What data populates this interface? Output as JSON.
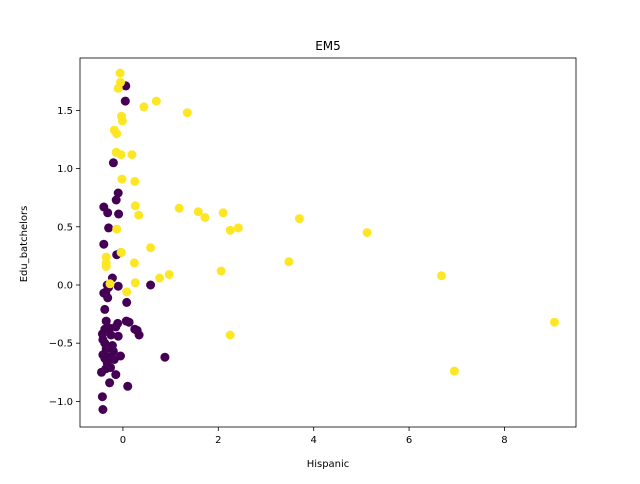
{
  "chart_data": {
    "type": "scatter",
    "title": "EM5",
    "xlabel": "Hispanic",
    "ylabel": "Edu_batchelors",
    "xlim": [
      -0.9,
      9.5
    ],
    "ylim": [
      -1.22,
      1.95
    ],
    "xticks": [
      0,
      2,
      4,
      6,
      8
    ],
    "yticks": [
      -1.0,
      -0.5,
      0.0,
      0.5,
      1.0,
      1.5
    ],
    "xtick_labels": [
      "0",
      "2",
      "4",
      "6",
      "8"
    ],
    "ytick_labels": [
      "−1.0",
      "−0.5",
      "0.0",
      "0.5",
      "1.0",
      "1.5"
    ],
    "grid": false,
    "legend": "none",
    "colors": {
      "cluster_0": "#440154",
      "cluster_1": "#21918c",
      "cluster_2": "#5ec962",
      "cluster_3": "#fde725"
    },
    "series": [
      {
        "color_key": "cluster_0",
        "points": [
          [
            0.06,
            1.71
          ],
          [
            0.05,
            1.58
          ],
          [
            -0.2,
            1.05
          ],
          [
            -0.1,
            0.79
          ],
          [
            -0.14,
            0.73
          ],
          [
            -0.4,
            0.67
          ],
          [
            -0.32,
            0.62
          ],
          [
            -0.09,
            0.61
          ],
          [
            -0.3,
            0.49
          ],
          [
            -0.4,
            0.35
          ],
          [
            -0.13,
            0.26
          ],
          [
            -0.22,
            0.06
          ],
          [
            -0.33,
            0.0
          ],
          [
            -0.1,
            -0.01
          ],
          [
            -0.3,
            -0.02
          ],
          [
            -0.36,
            -0.06
          ],
          [
            -0.4,
            -0.07
          ],
          [
            -0.32,
            -0.11
          ],
          [
            0.58,
            0.0
          ],
          [
            0.08,
            -0.15
          ],
          [
            -0.38,
            -0.21
          ],
          [
            -0.35,
            -0.31
          ],
          [
            0.07,
            -0.31
          ],
          [
            0.13,
            -0.32
          ],
          [
            -0.11,
            -0.33
          ],
          [
            -0.15,
            -0.36
          ],
          [
            -0.28,
            -0.37
          ],
          [
            -0.38,
            -0.38
          ],
          [
            0.25,
            -0.38
          ],
          [
            0.3,
            -0.39
          ],
          [
            -0.43,
            -0.42
          ],
          [
            -0.25,
            -0.43
          ],
          [
            -0.1,
            -0.44
          ],
          [
            0.34,
            -0.43
          ],
          [
            -0.42,
            -0.47
          ],
          [
            -0.38,
            -0.5
          ],
          [
            -0.22,
            -0.52
          ],
          [
            -0.35,
            -0.55
          ],
          [
            -0.2,
            -0.57
          ],
          [
            -0.42,
            -0.6
          ],
          [
            -0.3,
            -0.62
          ],
          [
            -0.05,
            -0.61
          ],
          [
            -0.38,
            -0.63
          ],
          [
            -0.18,
            -0.64
          ],
          [
            -0.33,
            -0.67
          ],
          [
            -0.26,
            -0.71
          ],
          [
            -0.45,
            -0.75
          ],
          [
            -0.36,
            -0.72
          ],
          [
            -0.15,
            -0.77
          ],
          [
            0.88,
            -0.62
          ],
          [
            -0.28,
            -0.84
          ],
          [
            0.1,
            -0.87
          ],
          [
            -0.43,
            -0.96
          ],
          [
            -0.42,
            -1.07
          ]
        ]
      },
      {
        "color_key": "cluster_2",
        "points": [
          [
            -0.04,
            0.28
          ]
        ]
      },
      {
        "color_key": "cluster_3",
        "points": [
          [
            -0.06,
            1.82
          ],
          [
            -0.05,
            1.74
          ],
          [
            -0.1,
            1.69
          ],
          [
            0.7,
            1.58
          ],
          [
            0.44,
            1.53
          ],
          [
            1.35,
            1.48
          ],
          [
            -0.03,
            1.45
          ],
          [
            -0.01,
            1.41
          ],
          [
            -0.18,
            1.33
          ],
          [
            -0.13,
            1.3
          ],
          [
            -0.14,
            1.14
          ],
          [
            -0.04,
            1.12
          ],
          [
            0.19,
            1.12
          ],
          [
            -0.02,
            0.91
          ],
          [
            0.25,
            0.89
          ],
          [
            0.26,
            0.68
          ],
          [
            1.18,
            0.66
          ],
          [
            1.58,
            0.63
          ],
          [
            2.1,
            0.62
          ],
          [
            0.33,
            0.6
          ],
          [
            1.72,
            0.58
          ],
          [
            3.7,
            0.57
          ],
          [
            2.42,
            0.49
          ],
          [
            2.25,
            0.47
          ],
          [
            -0.13,
            0.48
          ],
          [
            5.12,
            0.45
          ],
          [
            0.58,
            0.32
          ],
          [
            -0.03,
            0.28
          ],
          [
            -0.35,
            0.24
          ],
          [
            -0.35,
            0.19
          ],
          [
            0.24,
            0.19
          ],
          [
            3.48,
            0.2
          ],
          [
            -0.35,
            0.16
          ],
          [
            2.06,
            0.12
          ],
          [
            0.97,
            0.09
          ],
          [
            6.68,
            0.08
          ],
          [
            0.77,
            0.06
          ],
          [
            0.26,
            0.02
          ],
          [
            -0.27,
            0.01
          ],
          [
            0.08,
            -0.06
          ],
          [
            2.25,
            -0.43
          ],
          [
            9.05,
            -0.32
          ],
          [
            6.95,
            -0.74
          ]
        ]
      }
    ]
  }
}
